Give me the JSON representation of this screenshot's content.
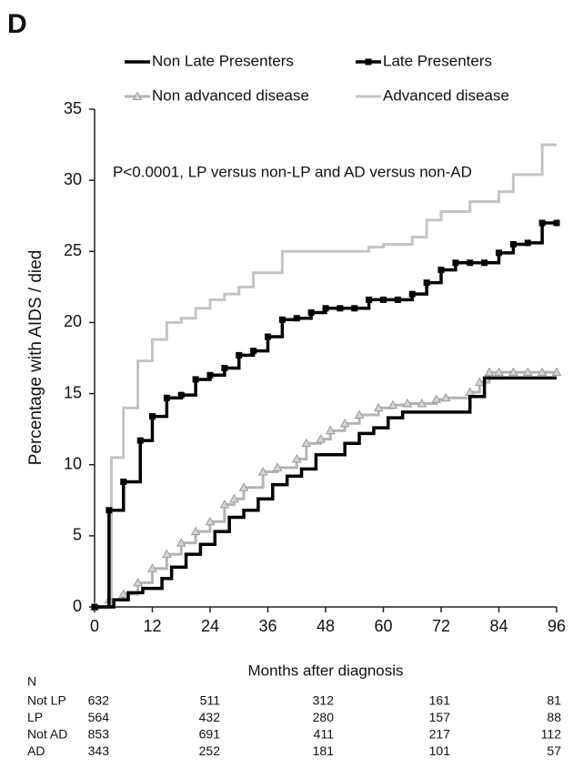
{
  "panel_label": "D",
  "chart_data": {
    "type": "step",
    "annotation": "P<0.0001, LP versus non-LP and AD versus non-AD",
    "x_label": "Months after diagnosis",
    "y_label": "Percentage with AIDS / died",
    "xlim": [
      0,
      96
    ],
    "xticks": [
      0,
      12,
      24,
      36,
      48,
      60,
      72,
      84,
      96
    ],
    "ylim": [
      0,
      35
    ],
    "yticks": [
      0,
      5,
      10,
      15,
      20,
      25,
      30,
      35
    ],
    "series": [
      {
        "name": "Non Late Presenters",
        "color": "#000000",
        "marker": "none",
        "x": [
          0,
          4,
          7,
          10,
          14,
          16,
          19,
          22,
          25,
          28,
          31,
          34,
          37,
          40,
          43,
          46,
          52,
          55,
          58,
          61,
          64,
          75,
          78,
          81,
          96
        ],
        "values": [
          0,
          0.5,
          1,
          1.3,
          2,
          2.8,
          3.7,
          4.4,
          5.3,
          6.3,
          6.8,
          7.6,
          8.6,
          9.2,
          9.7,
          10.7,
          11.5,
          12.2,
          12.6,
          13.3,
          13.7,
          13.7,
          14.8,
          16.1,
          16.1
        ]
      },
      {
        "name": "Late Presenters",
        "color": "#000000",
        "marker": "square",
        "x": [
          0,
          3,
          6,
          9.5,
          12,
          15,
          18,
          21,
          24,
          27,
          30,
          33,
          36,
          39,
          42,
          45,
          48,
          51,
          54,
          57,
          60,
          63,
          66,
          69,
          72,
          75,
          78,
          81,
          84,
          87,
          90,
          93,
          96
        ],
        "values": [
          0,
          6.8,
          8.8,
          11.7,
          13.4,
          14.7,
          14.9,
          16,
          16.3,
          16.8,
          17.7,
          18,
          19,
          20.2,
          20.3,
          20.7,
          21,
          21,
          21,
          21.6,
          21.6,
          21.6,
          22,
          22.8,
          23.7,
          24.2,
          24.2,
          24.2,
          24.9,
          25.5,
          25.6,
          27,
          27
        ]
      },
      {
        "name": "Non advanced disease",
        "color": "#b4b4b4",
        "marker": "triangle",
        "x": [
          0,
          3,
          6,
          9,
          12,
          15,
          18,
          21,
          24,
          27,
          29,
          31,
          35,
          38,
          42,
          44,
          47,
          49,
          52,
          55,
          59,
          62,
          65,
          68,
          71,
          73,
          78,
          80,
          82,
          84,
          87,
          90,
          93,
          96
        ],
        "values": [
          0,
          0.5,
          0.9,
          1.7,
          2.7,
          3.7,
          4.5,
          5.3,
          6,
          7.2,
          7.6,
          8.4,
          9.5,
          9.8,
          10.4,
          11.5,
          11.8,
          12.4,
          12.9,
          13.5,
          14,
          14.2,
          14.3,
          14.3,
          14.6,
          14.7,
          15.1,
          15.8,
          16.5,
          16.5,
          16.5,
          16.5,
          16.5,
          16.5
        ]
      },
      {
        "name": "Advanced disease",
        "color": "#c4c4c4",
        "marker": "none",
        "x": [
          0,
          3,
          3.5,
          6,
          9,
          12,
          15,
          18,
          21,
          24,
          27,
          30,
          33,
          39,
          57,
          60,
          66,
          69,
          72,
          78,
          84,
          87,
          93,
          96
        ],
        "values": [
          0,
          0,
          10.5,
          14,
          17.3,
          18.8,
          20,
          20.3,
          21,
          21.6,
          22,
          22.5,
          23.5,
          25,
          25.3,
          25.5,
          26,
          27.2,
          27.8,
          28.5,
          29.2,
          30.4,
          32.5,
          32.5
        ]
      }
    ],
    "risk_table": {
      "title": "N",
      "rows": [
        {
          "name": "Not LP",
          "values": [
            632,
            511,
            312,
            161,
            81
          ]
        },
        {
          "name": "LP",
          "values": [
            564,
            432,
            280,
            157,
            88
          ]
        },
        {
          "name": "Not AD",
          "values": [
            853,
            691,
            411,
            217,
            112
          ]
        },
        {
          "name": "AD",
          "values": [
            343,
            252,
            181,
            101,
            57
          ]
        }
      ]
    }
  }
}
